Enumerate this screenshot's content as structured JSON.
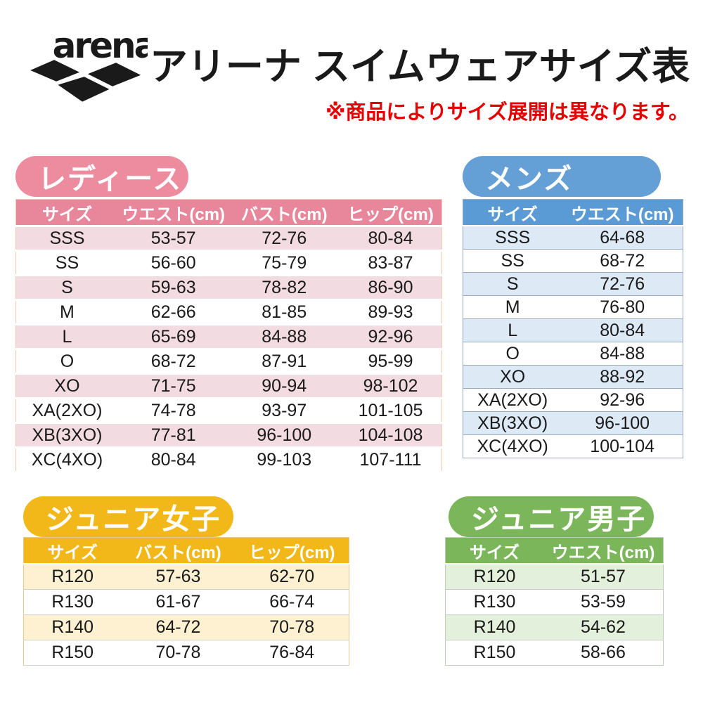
{
  "logo": {
    "brand": "arena"
  },
  "header": {
    "title": "アリーナ スイムウェアサイズ表",
    "note": "※商品によりサイズ展開は異なります。"
  },
  "colors": {
    "ladies_accent": "#ec8c9e",
    "ladies_row": "#f3dbe2",
    "mens_accent": "#5b9bd5",
    "mens_row": "#ddeaf6",
    "junior_girls_accent": "#f2b718",
    "junior_girls_row": "#fdf1d2",
    "junior_boys_accent": "#7bb75a",
    "junior_boys_row": "#e3f0db",
    "note_red": "#e60000",
    "logo_black": "#1a1a1a"
  },
  "sections": {
    "ladies": {
      "badge": "レディース",
      "columns": [
        "サイズ",
        "ウエスト(cm)",
        "バスト(cm)",
        "ヒップ(cm)"
      ],
      "rows": [
        [
          "SSS",
          "53-57",
          "72-76",
          "80-84"
        ],
        [
          "SS",
          "56-60",
          "75-79",
          "83-87"
        ],
        [
          "S",
          "59-63",
          "78-82",
          "86-90"
        ],
        [
          "M",
          "62-66",
          "81-85",
          "89-93"
        ],
        [
          "L",
          "65-69",
          "84-88",
          "92-96"
        ],
        [
          "O",
          "68-72",
          "87-91",
          "95-99"
        ],
        [
          "XO",
          "71-75",
          "90-94",
          "98-102"
        ],
        [
          "XA(2XO)",
          "74-78",
          "93-97",
          "101-105"
        ],
        [
          "XB(3XO)",
          "77-81",
          "96-100",
          "104-108"
        ],
        [
          "XC(4XO)",
          "80-84",
          "99-103",
          "107-111"
        ]
      ]
    },
    "mens": {
      "badge": "メンズ",
      "columns": [
        "サイズ",
        "ウエスト(cm)"
      ],
      "rows": [
        [
          "SSS",
          "64-68"
        ],
        [
          "SS",
          "68-72"
        ],
        [
          "S",
          "72-76"
        ],
        [
          "M",
          "76-80"
        ],
        [
          "L",
          "80-84"
        ],
        [
          "O",
          "84-88"
        ],
        [
          "XO",
          "88-92"
        ],
        [
          "XA(2XO)",
          "92-96"
        ],
        [
          "XB(3XO)",
          "96-100"
        ],
        [
          "XC(4XO)",
          "100-104"
        ]
      ]
    },
    "junior_girls": {
      "badge": "ジュニア女子",
      "columns": [
        "サイズ",
        "バスト(cm)",
        "ヒップ(cm)"
      ],
      "rows": [
        [
          "R120",
          "57-63",
          "62-70"
        ],
        [
          "R130",
          "61-67",
          "66-74"
        ],
        [
          "R140",
          "64-72",
          "70-78"
        ],
        [
          "R150",
          "70-78",
          "76-84"
        ]
      ]
    },
    "junior_boys": {
      "badge": "ジュニア男子",
      "columns": [
        "サイズ",
        "ウエスト(cm)"
      ],
      "rows": [
        [
          "R120",
          "51-57"
        ],
        [
          "R130",
          "53-59"
        ],
        [
          "R140",
          "54-62"
        ],
        [
          "R150",
          "58-66"
        ]
      ]
    }
  }
}
